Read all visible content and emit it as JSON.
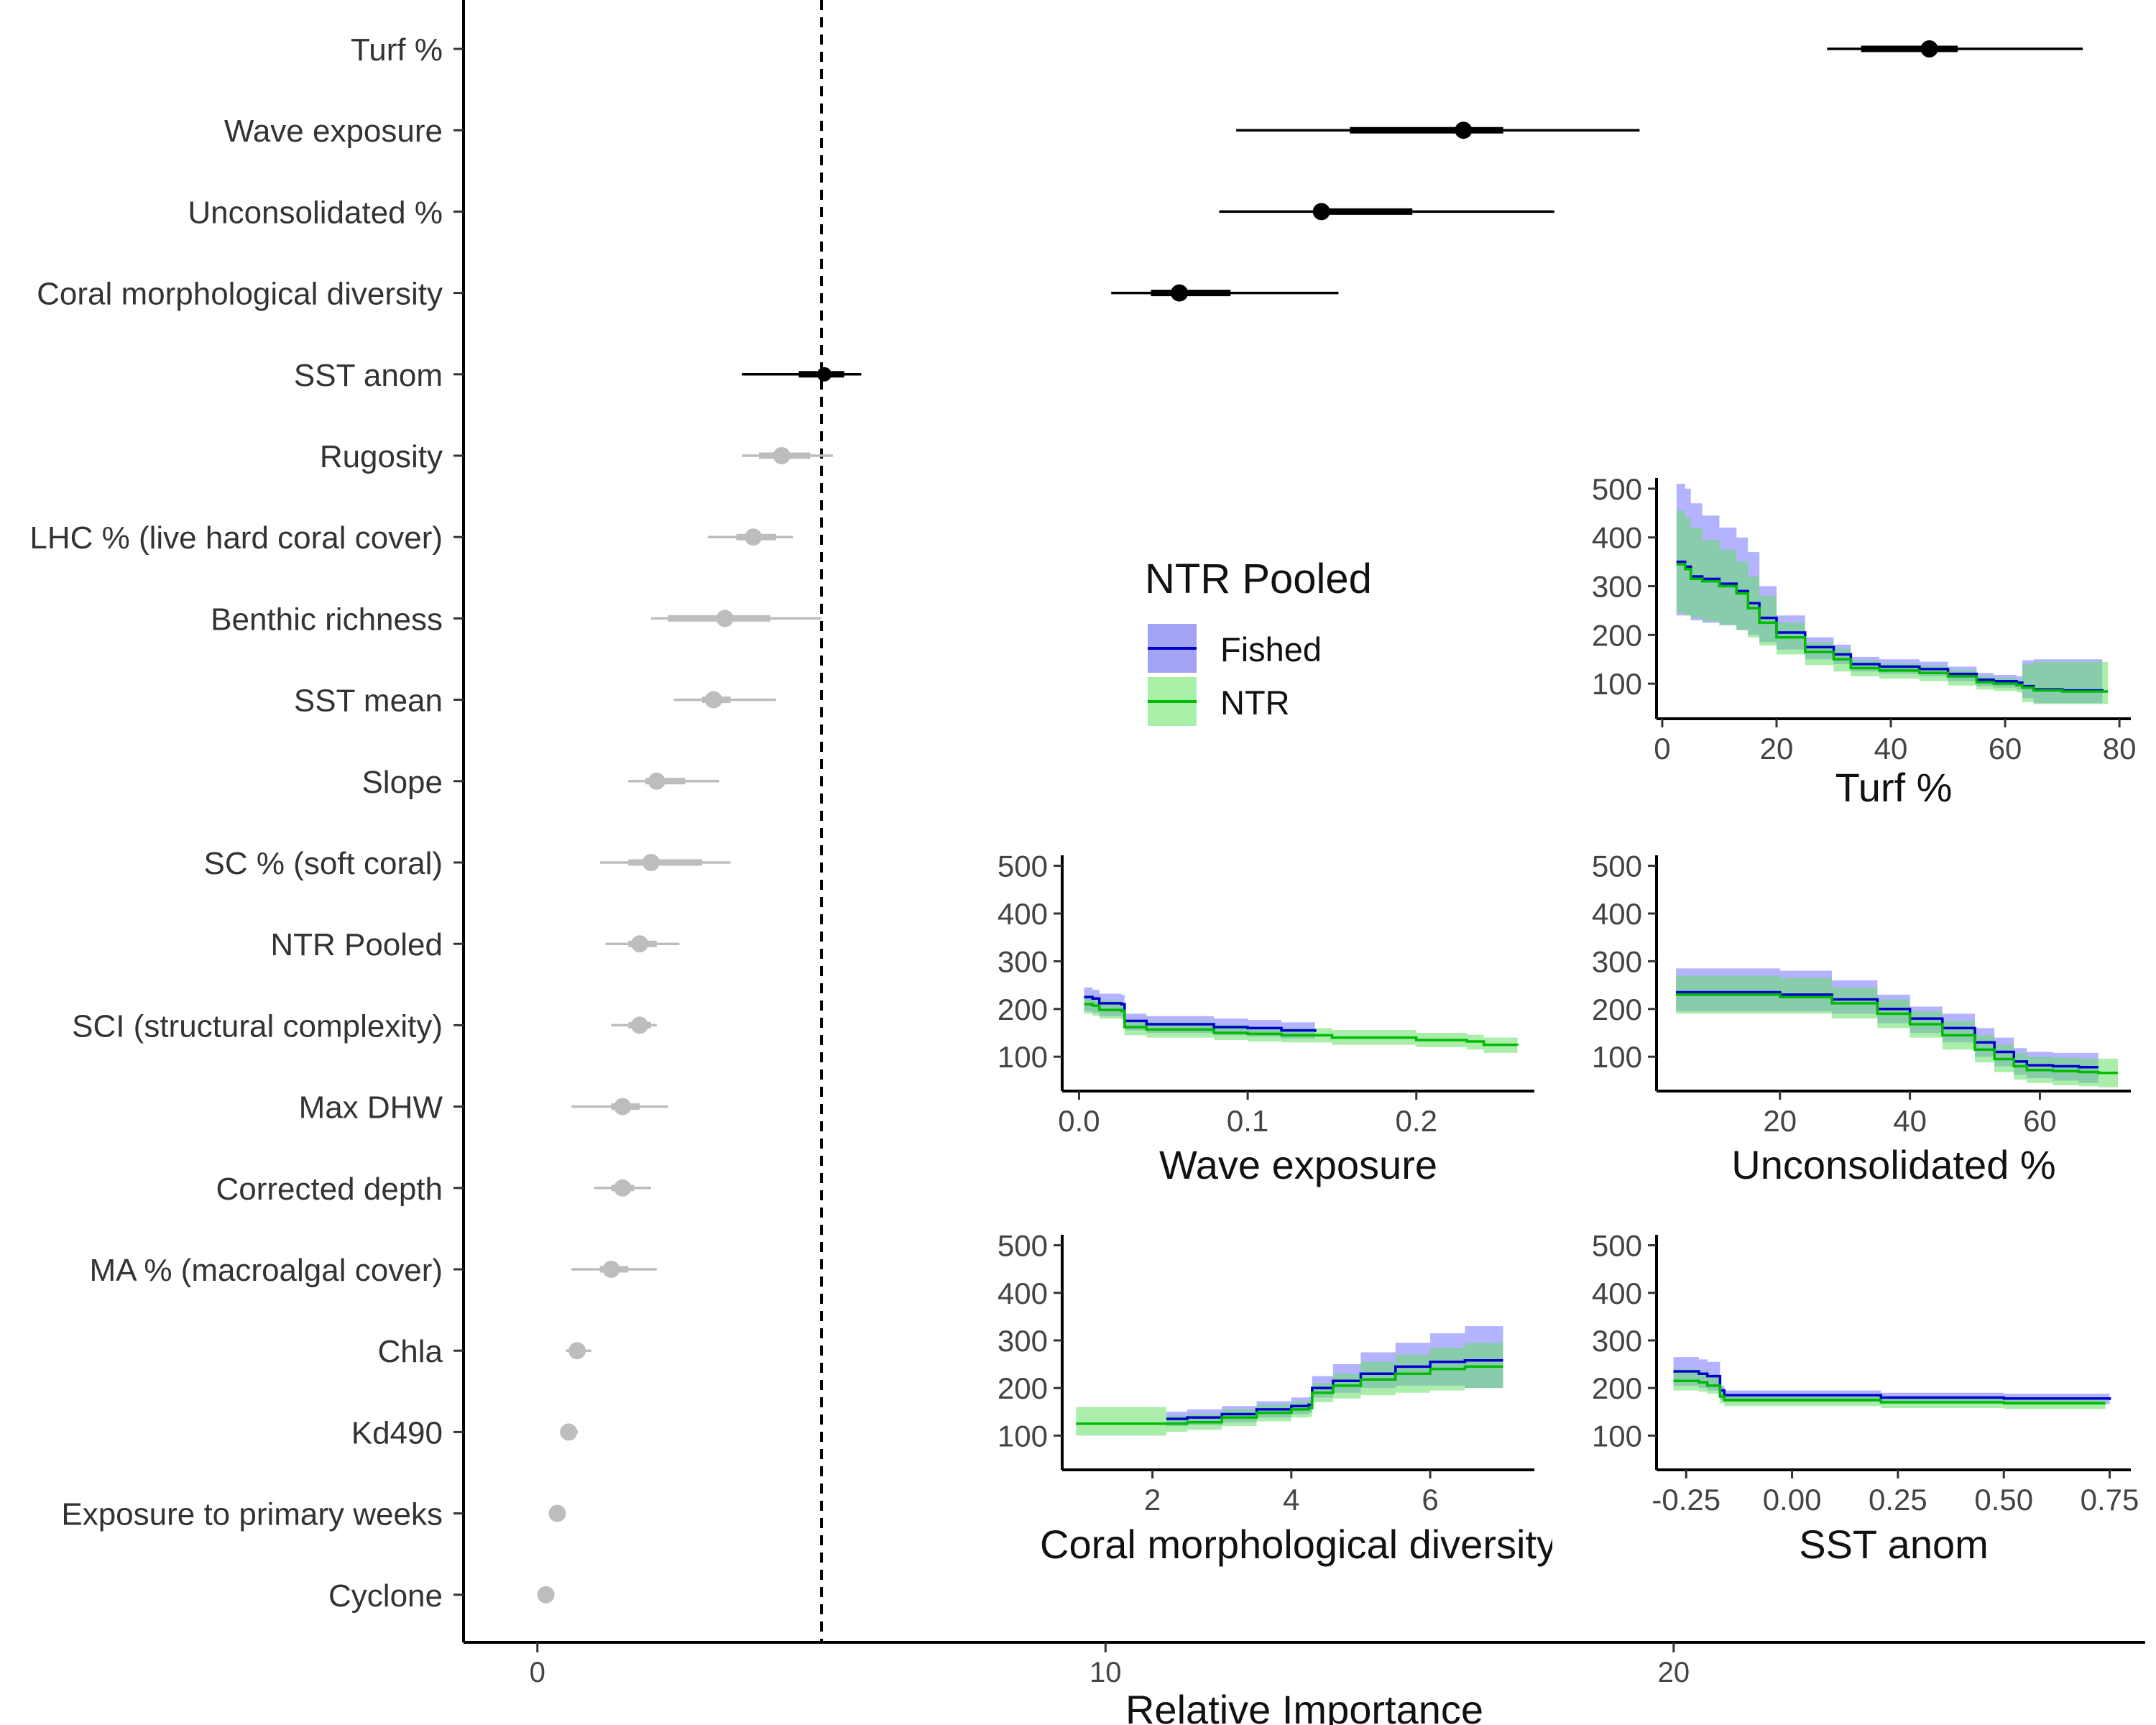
{
  "chart_data": [
    {
      "type": "scatter",
      "subtype": "dot-and-interval plot",
      "xlabel": "Relative Importance",
      "ylabel": "",
      "xlim": [
        -1.3,
        28.3
      ],
      "xticks": [
        0,
        10,
        20
      ],
      "reference_line": 5,
      "colors": {
        "strong": "#000000",
        "weak": "#bdbdbd"
      },
      "predictors": [
        {
          "label": "Turf %",
          "value": 24.5,
          "inner": [
            23.3,
            25.0
          ],
          "outer": [
            22.7,
            27.2
          ],
          "strong": true
        },
        {
          "label": "Wave exposure",
          "value": 16.3,
          "inner": [
            14.3,
            17.0
          ],
          "outer": [
            12.3,
            19.4
          ],
          "strong": true
        },
        {
          "label": "Unconsolidated %",
          "value": 13.8,
          "inner": [
            13.8,
            15.4
          ],
          "outer": [
            12.0,
            17.9
          ],
          "strong": true
        },
        {
          "label": "Coral morphological diversity",
          "value": 11.3,
          "inner": [
            10.8,
            12.2
          ],
          "outer": [
            10.1,
            14.1
          ],
          "strong": true
        },
        {
          "label": "SST anom",
          "value": 5.05,
          "inner": [
            4.6,
            5.4
          ],
          "outer": [
            3.6,
            5.7
          ],
          "strong": true
        },
        {
          "label": "Rugosity",
          "value": 4.3,
          "inner": [
            3.9,
            4.8
          ],
          "outer": [
            3.6,
            5.2
          ],
          "strong": false
        },
        {
          "label": "LHC % (live hard coral cover)",
          "value": 3.8,
          "inner": [
            3.5,
            4.2
          ],
          "outer": [
            3.0,
            4.5
          ],
          "strong": false
        },
        {
          "label": "Benthic richness",
          "value": 3.3,
          "inner": [
            2.3,
            4.1
          ],
          "outer": [
            2.0,
            5.0
          ],
          "strong": false
        },
        {
          "label": "SST mean",
          "value": 3.1,
          "inner": [
            2.9,
            3.4
          ],
          "outer": [
            2.4,
            4.2
          ],
          "strong": false
        },
        {
          "label": "Slope",
          "value": 2.1,
          "inner": [
            1.9,
            2.6
          ],
          "outer": [
            1.6,
            3.2
          ],
          "strong": false
        },
        {
          "label": "SC % (soft coral)",
          "value": 2.0,
          "inner": [
            1.6,
            2.9
          ],
          "outer": [
            1.1,
            3.4
          ],
          "strong": false
        },
        {
          "label": "NTR Pooled",
          "value": 1.8,
          "inner": [
            1.6,
            2.1
          ],
          "outer": [
            1.2,
            2.5
          ],
          "strong": false
        },
        {
          "label": "SCI (structural complexity)",
          "value": 1.8,
          "inner": [
            1.6,
            2.0
          ],
          "outer": [
            1.3,
            2.1
          ],
          "strong": false
        },
        {
          "label": "Max DHW",
          "value": 1.5,
          "inner": [
            1.3,
            1.8
          ],
          "outer": [
            0.6,
            2.3
          ],
          "strong": false
        },
        {
          "label": "Corrected depth",
          "value": 1.5,
          "inner": [
            1.3,
            1.7
          ],
          "outer": [
            1.0,
            2.0
          ],
          "strong": false
        },
        {
          "label": "MA % (macroalgal cover)",
          "value": 1.3,
          "inner": [
            1.1,
            1.6
          ],
          "outer": [
            0.6,
            2.1
          ],
          "strong": false
        },
        {
          "label": "Chla",
          "value": 0.7,
          "inner": [
            0.6,
            0.8
          ],
          "outer": [
            0.5,
            0.95
          ],
          "strong": false
        },
        {
          "label": "Kd490",
          "value": 0.55,
          "inner": [
            0.5,
            0.65
          ],
          "outer": [
            0.4,
            0.72
          ],
          "strong": false
        },
        {
          "label": "Exposure to primary weeks",
          "value": 0.35,
          "inner": [
            0.33,
            0.4
          ],
          "outer": [
            0.3,
            0.45
          ],
          "strong": false
        },
        {
          "label": "Cyclone",
          "value": 0.15,
          "inner": [
            0.1,
            0.2
          ],
          "outer": [
            0.05,
            0.25
          ],
          "strong": false
        }
      ]
    },
    {
      "type": "line",
      "subtype": "partial dependence with ribbons",
      "xlabel": "Turf %",
      "xlim": [
        -1,
        82
      ],
      "ylim": [
        28,
        522
      ],
      "xticks": [
        0,
        20,
        40,
        60,
        80
      ],
      "xtick_labels": [
        "0",
        "20",
        "40",
        "60",
        "80"
      ],
      "yticks": [
        100,
        200,
        300,
        400,
        500
      ],
      "series": [
        {
          "name": "Fished",
          "x": [
            2.5,
            4,
            5,
            7,
            10,
            13,
            15,
            17,
            20,
            25,
            30,
            33,
            38,
            45,
            50,
            55,
            58,
            62,
            63,
            65,
            70,
            75,
            77
          ],
          "y": [
            350,
            340,
            320,
            315,
            305,
            290,
            265,
            235,
            205,
            175,
            160,
            140,
            135,
            130,
            120,
            108,
            105,
            102,
            95,
            88,
            86,
            86,
            85
          ],
          "lower": [
            240,
            240,
            230,
            225,
            220,
            210,
            200,
            185,
            170,
            150,
            140,
            125,
            120,
            115,
            105,
            95,
            92,
            88,
            70,
            60,
            60,
            60,
            60
          ],
          "upper": [
            510,
            500,
            470,
            445,
            420,
            400,
            370,
            300,
            240,
            195,
            180,
            155,
            150,
            145,
            135,
            122,
            118,
            115,
            148,
            150,
            150,
            150,
            150
          ]
        },
        {
          "name": "NTR",
          "x": [
            2.5,
            4,
            5,
            7,
            10,
            13,
            15,
            17,
            20,
            25,
            30,
            33,
            38,
            45,
            50,
            55,
            58,
            62,
            63,
            65,
            70,
            75,
            78
          ],
          "y": [
            345,
            335,
            315,
            310,
            300,
            285,
            255,
            225,
            195,
            165,
            150,
            132,
            127,
            122,
            115,
            103,
            100,
            97,
            92,
            86,
            84,
            84,
            84
          ],
          "lower": [
            245,
            240,
            235,
            228,
            220,
            210,
            195,
            178,
            160,
            138,
            125,
            115,
            110,
            105,
            96,
            88,
            85,
            82,
            62,
            58,
            58,
            58,
            58
          ],
          "upper": [
            455,
            440,
            420,
            395,
            375,
            350,
            320,
            280,
            225,
            185,
            172,
            148,
            142,
            137,
            128,
            115,
            112,
            108,
            140,
            145,
            145,
            145,
            145
          ]
        }
      ]
    },
    {
      "type": "line",
      "subtype": "partial dependence with ribbons",
      "xlabel": "Wave exposure",
      "xlim": [
        -0.01,
        0.27
      ],
      "ylim": [
        28,
        522
      ],
      "xticks": [
        0,
        0.1,
        0.2
      ],
      "xtick_labels": [
        "0.0",
        "0.1",
        "0.2"
      ],
      "yticks": [
        100,
        200,
        300,
        400,
        500
      ],
      "series": [
        {
          "name": "Fished",
          "x": [
            0.003,
            0.008,
            0.012,
            0.025,
            0.027,
            0.04,
            0.08,
            0.1,
            0.12,
            0.14
          ],
          "y": [
            225,
            222,
            212,
            210,
            175,
            168,
            162,
            160,
            155,
            152
          ],
          "lower": [
            195,
            192,
            185,
            183,
            155,
            150,
            145,
            142,
            138,
            135
          ],
          "upper": [
            245,
            240,
            232,
            230,
            190,
            185,
            180,
            177,
            172,
            168
          ]
        },
        {
          "name": "NTR",
          "x": [
            0.003,
            0.008,
            0.012,
            0.025,
            0.027,
            0.04,
            0.08,
            0.1,
            0.12,
            0.15,
            0.2,
            0.23,
            0.24,
            0.26
          ],
          "y": [
            210,
            207,
            198,
            196,
            162,
            157,
            150,
            148,
            145,
            140,
            135,
            132,
            125,
            124
          ],
          "lower": [
            190,
            186,
            180,
            178,
            145,
            140,
            135,
            132,
            130,
            125,
            120,
            115,
            108,
            106
          ],
          "upper": [
            230,
            226,
            218,
            214,
            178,
            172,
            167,
            163,
            160,
            156,
            150,
            146,
            140,
            140
          ]
        }
      ]
    },
    {
      "type": "line",
      "subtype": "partial dependence with ribbons",
      "xlabel": "Unconsolidated %",
      "xlim": [
        1,
        74
      ],
      "ylim": [
        28,
        522
      ],
      "xticks": [
        20,
        40,
        60
      ],
      "xtick_labels": [
        "20",
        "40",
        "60"
      ],
      "yticks": [
        100,
        200,
        300,
        400,
        500
      ],
      "series": [
        {
          "name": "Fished",
          "x": [
            4,
            10,
            20,
            28,
            35,
            40,
            45,
            50,
            53,
            56,
            58,
            62,
            66,
            69
          ],
          "y": [
            235,
            235,
            230,
            220,
            200,
            180,
            160,
            130,
            110,
            90,
            82,
            80,
            78,
            78
          ],
          "lower": [
            195,
            195,
            195,
            190,
            170,
            150,
            130,
            100,
            80,
            62,
            55,
            50,
            45,
            45
          ],
          "upper": [
            285,
            285,
            280,
            260,
            230,
            205,
            190,
            160,
            140,
            118,
            110,
            108,
            108,
            108
          ]
        },
        {
          "name": "NTR",
          "x": [
            4,
            10,
            20,
            28,
            35,
            40,
            45,
            50,
            53,
            56,
            58,
            62,
            66,
            69,
            72
          ],
          "y": [
            230,
            230,
            225,
            212,
            190,
            168,
            145,
            115,
            95,
            80,
            72,
            70,
            68,
            66,
            66
          ],
          "lower": [
            190,
            190,
            190,
            180,
            160,
            140,
            115,
            88,
            68,
            52,
            45,
            40,
            38,
            36,
            36
          ],
          "upper": [
            270,
            270,
            265,
            245,
            220,
            195,
            175,
            145,
            125,
            108,
            100,
            98,
            96,
            96,
            96
          ]
        }
      ]
    },
    {
      "type": "line",
      "subtype": "partial dependence with ribbons",
      "xlabel": "Coral morphological diversity",
      "xlim": [
        0.7,
        7.5
      ],
      "ylim": [
        28,
        522
      ],
      "xticks": [
        2,
        4,
        6
      ],
      "xtick_labels": [
        "2",
        "4",
        "6"
      ],
      "yticks": [
        100,
        200,
        300,
        400,
        500
      ],
      "series": [
        {
          "name": "Fished",
          "x": [
            2.2,
            2.5,
            3,
            3.5,
            4,
            4.25,
            4.3,
            4.6,
            5,
            5.5,
            6,
            6.5,
            7.05
          ],
          "y": [
            135,
            138,
            145,
            155,
            162,
            165,
            200,
            215,
            230,
            245,
            255,
            258,
            258
          ],
          "lower": [
            120,
            122,
            128,
            138,
            145,
            148,
            180,
            190,
            200,
            205,
            205,
            200,
            200
          ],
          "upper": [
            150,
            155,
            162,
            172,
            180,
            182,
            225,
            250,
            275,
            295,
            315,
            330,
            335
          ]
        },
        {
          "name": "NTR",
          "x": [
            0.9,
            1.5,
            2.2,
            2.5,
            3,
            3.5,
            4,
            4.25,
            4.3,
            4.6,
            5,
            5.5,
            6,
            6.5,
            7.05
          ],
          "y": [
            125,
            125,
            125,
            128,
            138,
            148,
            155,
            158,
            190,
            205,
            218,
            230,
            240,
            245,
            245
          ],
          "lower": [
            100,
            100,
            108,
            112,
            120,
            130,
            138,
            140,
            170,
            178,
            185,
            190,
            195,
            200,
            200
          ],
          "upper": [
            160,
            160,
            142,
            145,
            155,
            165,
            172,
            175,
            210,
            230,
            255,
            270,
            285,
            295,
            300
          ]
        }
      ]
    },
    {
      "type": "line",
      "subtype": "partial dependence with ribbons",
      "xlabel": "SST anom",
      "xlim": [
        -0.32,
        0.8
      ],
      "ylim": [
        28,
        522
      ],
      "xticks": [
        -0.25,
        0,
        0.25,
        0.5,
        0.75
      ],
      "xtick_labels": [
        "-0.25",
        "0.00",
        "0.25",
        "0.50",
        "0.75"
      ],
      "yticks": [
        100,
        200,
        300,
        400,
        500
      ],
      "series": [
        {
          "name": "Fished",
          "x": [
            -0.28,
            -0.22,
            -0.2,
            -0.17,
            -0.16,
            0,
            0.2,
            0.21,
            0.5,
            0.75
          ],
          "y": [
            235,
            230,
            225,
            195,
            185,
            185,
            185,
            180,
            178,
            175
          ],
          "lower": [
            205,
            200,
            195,
            175,
            170,
            170,
            170,
            168,
            166,
            165
          ],
          "upper": [
            265,
            260,
            255,
            205,
            195,
            195,
            195,
            190,
            188,
            186
          ]
        },
        {
          "name": "NTR",
          "x": [
            -0.28,
            -0.22,
            -0.2,
            -0.17,
            -0.16,
            0,
            0.2,
            0.21,
            0.5,
            0.74
          ],
          "y": [
            215,
            212,
            205,
            182,
            175,
            175,
            175,
            170,
            168,
            168
          ],
          "lower": [
            195,
            192,
            188,
            168,
            162,
            162,
            162,
            158,
            156,
            156
          ],
          "upper": [
            240,
            235,
            228,
            195,
            188,
            188,
            188,
            182,
            180,
            180
          ]
        }
      ]
    }
  ],
  "legend": {
    "title": "NTR Pooled",
    "items": [
      {
        "label": "Fished",
        "line": "#0000cc",
        "fill": "#a3a3f5"
      },
      {
        "label": "NTR",
        "line": "#00bb00",
        "fill": "#a8f0a8"
      }
    ]
  },
  "colors": {
    "fished_line": "#0000cc",
    "fished_fill": "#9999ff",
    "ntr_line": "#00bb00",
    "ntr_fill": "#66e066"
  }
}
